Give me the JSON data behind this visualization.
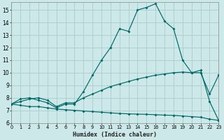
{
  "xlabel": "Humidex (Indice chaleur)",
  "bg_color": "#cce8e8",
  "grid_color": "#aacccc",
  "line_color": "#006868",
  "xlim": [
    0,
    23
  ],
  "ylim": [
    6,
    15.6
  ],
  "xticks": [
    0,
    1,
    2,
    3,
    4,
    5,
    6,
    7,
    8,
    9,
    10,
    11,
    12,
    13,
    14,
    15,
    16,
    17,
    18,
    19,
    20,
    21,
    22,
    23
  ],
  "yticks": [
    6,
    7,
    8,
    9,
    10,
    11,
    12,
    13,
    14,
    15
  ],
  "line1_x": [
    0,
    1,
    2,
    3,
    4,
    5,
    6,
    7,
    8,
    9,
    10,
    11,
    12,
    13,
    14,
    15,
    16,
    17,
    18,
    19,
    20,
    21,
    22,
    23
  ],
  "line1_y": [
    7.5,
    7.9,
    8.0,
    7.8,
    7.6,
    7.2,
    7.5,
    7.5,
    8.5,
    9.8,
    11.0,
    12.0,
    13.5,
    13.3,
    15.0,
    15.2,
    15.5,
    14.1,
    13.5,
    11.0,
    10.0,
    10.2,
    7.7,
    6.2
  ],
  "line2_x": [
    0,
    1,
    2,
    3,
    4,
    5,
    6,
    7,
    8,
    9,
    10,
    11,
    12,
    13,
    14,
    15,
    16,
    17,
    18,
    19,
    20,
    21,
    22,
    23
  ],
  "line2_y": [
    7.5,
    7.7,
    7.9,
    8.0,
    7.8,
    7.3,
    7.6,
    7.6,
    8.0,
    8.3,
    8.6,
    8.9,
    9.1,
    9.3,
    9.5,
    9.65,
    9.8,
    9.9,
    10.0,
    10.05,
    10.0,
    10.0,
    8.3,
    9.8
  ],
  "line3_x": [
    0,
    1,
    2,
    3,
    4,
    5,
    6,
    7,
    8,
    9,
    10,
    11,
    12,
    13,
    14,
    15,
    16,
    17,
    18,
    19,
    20,
    21,
    22,
    23
  ],
  "line3_y": [
    7.5,
    7.4,
    7.3,
    7.3,
    7.2,
    7.1,
    7.05,
    7.0,
    6.95,
    6.9,
    6.85,
    6.8,
    6.75,
    6.72,
    6.7,
    6.68,
    6.65,
    6.62,
    6.6,
    6.55,
    6.5,
    6.45,
    6.3,
    6.2
  ]
}
